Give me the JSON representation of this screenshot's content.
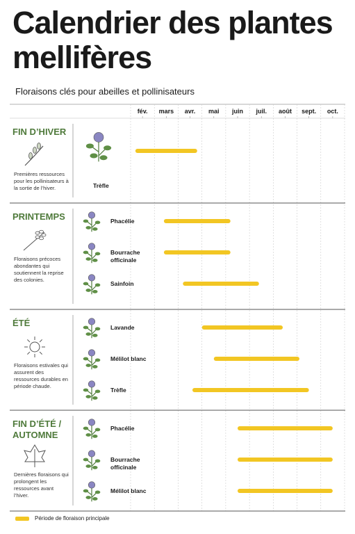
{
  "chart_data": {
    "type": "timeline",
    "title": "Calendrier des plantes mellifères",
    "subtitle": "Floraisons clés pour abeilles et pollinisateurs",
    "xlim": [
      1.5,
      10.5
    ],
    "xticks": [
      {
        "value": 2,
        "label": "fév."
      },
      {
        "value": 3,
        "label": "mars"
      },
      {
        "value": 4,
        "label": "avr."
      },
      {
        "value": 5,
        "label": "mai"
      },
      {
        "value": 6,
        "label": "juin"
      },
      {
        "value": 7,
        "label": "juil."
      },
      {
        "value": 8,
        "label": "août"
      },
      {
        "value": 9,
        "label": "sept."
      },
      {
        "value": 10,
        "label": "oct."
      }
    ],
    "color": "#f2c623",
    "legend": "Période de floraison principale",
    "groups": [
      {
        "name": "FIN D’HIVER",
        "description": "Premières ressources pour les pollinisateurs à la sortie de l’hiver.",
        "plants": [
          {
            "name": "Trèfle",
            "start": 1.7,
            "end": 4.3
          }
        ]
      },
      {
        "name": "PRINTEMPS",
        "description": "Floraisons précoces abondantes qui soutiennent la reprise des colonies.",
        "plants": [
          {
            "name": "Phacélie",
            "start": 2.9,
            "end": 5.7
          },
          {
            "name": "Bourrache officinale",
            "start": 2.9,
            "end": 5.7
          },
          {
            "name": "Sainfoin",
            "start": 3.7,
            "end": 6.9
          }
        ]
      },
      {
        "name": "ÉTÉ",
        "description": "Floraisons estivales qui assurent des ressources durables en période chaude.",
        "plants": [
          {
            "name": "Lavande",
            "start": 4.5,
            "end": 7.9
          },
          {
            "name": "Mélilot blanc",
            "start": 5.0,
            "end": 8.6
          },
          {
            "name": "Trèfle",
            "start": 4.1,
            "end": 9.0
          }
        ]
      },
      {
        "name": "FIN D’ÉTÉ / AUTOMNE",
        "description": "Dernières floraisons qui prolongent les ressources avant l’hiver.",
        "plants": [
          {
            "name": "Phacélie",
            "start": 6.0,
            "end": 10.0
          },
          {
            "name": "Bourrache officinale",
            "start": 6.0,
            "end": 10.0
          },
          {
            "name": "Mélilot blanc",
            "start": 6.0,
            "end": 10.0
          }
        ]
      }
    ]
  }
}
